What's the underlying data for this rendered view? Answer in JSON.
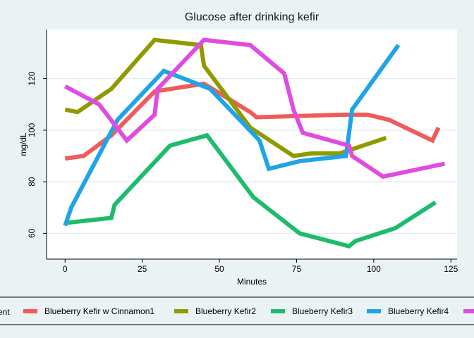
{
  "chart_data": {
    "type": "line",
    "title": "Glucose after drinking kefir",
    "xlabel": "Minutes",
    "ylabel": "mg/dL",
    "xlim": [
      -6,
      127
    ],
    "ylim": [
      50,
      139
    ],
    "xticks": [
      0,
      25,
      50,
      75,
      100,
      125
    ],
    "yticks": [
      60,
      80,
      100,
      120
    ],
    "grid": "horizontal",
    "legend": {
      "title_fragment": "ent",
      "position": "bottom"
    },
    "series": [
      {
        "name": "Blueberry Kefir w Cinnamon1",
        "color": "#ef5b5b",
        "x": [
          0,
          6,
          15,
          29,
          45,
          60,
          62,
          90,
          98,
          105,
          119,
          121
        ],
        "y": [
          89,
          90,
          98,
          115,
          118,
          107,
          105,
          106,
          106,
          104,
          96,
          101
        ]
      },
      {
        "name": "Blueberry Kefir2",
        "color": "#8f9a00",
        "x": [
          0,
          4,
          15,
          29,
          44,
          45,
          60,
          74,
          80,
          89,
          104
        ],
        "y": [
          108,
          107,
          116,
          135,
          133,
          125,
          101,
          90,
          91,
          91,
          97
        ]
      },
      {
        "name": "Blueberry Kefir3",
        "color": "#1cbc6c",
        "x": [
          0,
          15,
          16,
          34,
          46,
          61,
          76,
          92,
          94,
          107,
          120
        ],
        "y": [
          64,
          66,
          71,
          94,
          98,
          74,
          60,
          55,
          57,
          62,
          72
        ]
      },
      {
        "name": "Blueberry Kefir4",
        "color": "#1fa4e8",
        "x": [
          0,
          2,
          17,
          32,
          47,
          63,
          66,
          76,
          91,
          93,
          108
        ],
        "y": [
          63,
          70,
          104,
          123,
          116,
          96,
          85,
          88,
          90,
          108,
          133
        ]
      },
      {
        "name": "",
        "color": "#e04be0",
        "x": [
          0,
          11,
          20,
          29,
          30,
          45,
          60,
          71,
          74,
          77,
          92,
          93,
          103,
          123
        ],
        "y": [
          117,
          110,
          96,
          106,
          116,
          135,
          133,
          122,
          108,
          99,
          94,
          90,
          82,
          87
        ]
      }
    ]
  }
}
